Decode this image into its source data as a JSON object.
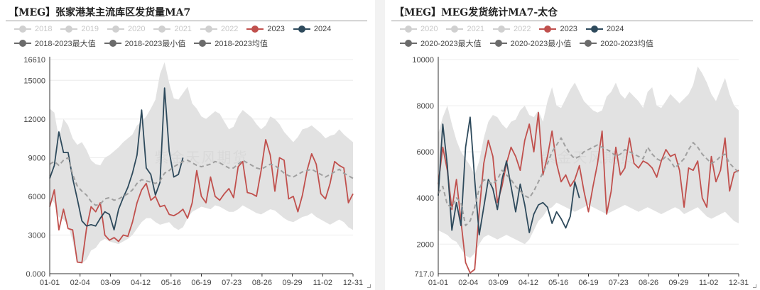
{
  "chart_data": [
    {
      "type": "line",
      "title": "【MEG】张家港某主流库区发货量MA7",
      "x_ticks": [
        "01-01",
        "02-04",
        "03-09",
        "04-12",
        "05-16",
        "06-19",
        "07-23",
        "08-26",
        "09-29",
        "11-02",
        "12-31"
      ],
      "y_ticks": [
        "0.000",
        "3000",
        "6000",
        "9000",
        "12000",
        "15000",
        "16610"
      ],
      "ylim": [
        0,
        16610
      ],
      "grid": true,
      "legend_placement": "top",
      "watermark": "紫金天风期货",
      "legend": [
        {
          "name": "2018",
          "style": "dim"
        },
        {
          "name": "2019",
          "style": "dim"
        },
        {
          "name": "2020",
          "style": "dim"
        },
        {
          "name": "2021",
          "style": "dim"
        },
        {
          "name": "2022",
          "style": "dim"
        },
        {
          "name": "2023",
          "style": "red"
        },
        {
          "name": "2024",
          "style": "navy"
        },
        {
          "name": "2018-2023最大值",
          "style": "gray"
        },
        {
          "name": "2018-2023最小值",
          "style": "gray"
        },
        {
          "name": "2018-2023均值",
          "style": "gray"
        }
      ],
      "series": [
        {
          "name": "2023",
          "color": "#c0504d",
          "values": [
            5200,
            6500,
            3400,
            5000,
            3500,
            3400,
            900,
            850,
            3500,
            5200,
            4800,
            5500,
            3000,
            2600,
            2800,
            2500,
            3000,
            2900,
            4000,
            5500,
            6500,
            7000,
            5700,
            6000,
            5200,
            5300,
            4600,
            4500,
            4700,
            5000,
            4300,
            5500,
            8000,
            6000,
            5500,
            7500,
            6000,
            5700,
            6200,
            6600,
            5900,
            8300,
            8700,
            6300,
            6200,
            6000,
            8000,
            10400,
            9200,
            6400,
            9000,
            8800,
            5800,
            6000,
            4800,
            6100,
            8000,
            9300,
            8500,
            6200,
            5800,
            7000,
            8700,
            8400,
            8200,
            5500,
            6200
          ]
        },
        {
          "name": "2024",
          "color": "#2e4a5c",
          "values": [
            7400,
            8400,
            11000,
            9400,
            9400,
            7400,
            5800,
            4100,
            3700,
            3800,
            3700,
            4300,
            4800,
            4600,
            3400,
            5000,
            5900,
            6700,
            7800,
            9200,
            12700,
            8200,
            7700,
            6100,
            7100,
            14400,
            9500,
            7500,
            7700,
            9000
          ]
        },
        {
          "name": "2018-2023均值",
          "color": "#a0a0a0",
          "dashed": true,
          "values": [
            8500,
            8700,
            8400,
            8800,
            9000,
            7700,
            6800,
            6400,
            6100,
            5600,
            5300,
            5400,
            5800,
            5900,
            5700,
            5800,
            6000,
            6200,
            6500,
            7000,
            7300,
            7200,
            7100,
            7000,
            7200,
            7800,
            8000,
            8300,
            8500,
            8700,
            8800,
            8600,
            8400,
            8300,
            8400,
            8500,
            8700,
            8600,
            8400,
            8200,
            8200,
            8500,
            8800,
            8600,
            8400,
            8200,
            8100,
            8300,
            8500,
            8400,
            8100,
            7800,
            7600,
            7500,
            7700,
            7900,
            8000,
            8100,
            7900,
            7700,
            7500,
            7700,
            7900,
            8100,
            7800,
            7600,
            7400
          ]
        },
        {
          "name": "2018-2023最大值",
          "color": "#e3e3e3",
          "values": [
            12800,
            12500,
            10500,
            12000,
            11500,
            10500,
            10000,
            10200,
            9600,
            8800,
            8500,
            8400,
            9000,
            9200,
            9500,
            9800,
            10200,
            10500,
            10800,
            11500,
            11800,
            12200,
            12800,
            13500,
            15500,
            16400,
            14800,
            13600,
            13500,
            14000,
            14500,
            13200,
            12800,
            12200,
            12000,
            12300,
            12600,
            12400,
            11800,
            11200,
            11400,
            12200,
            12700,
            12400,
            12100,
            11600,
            11200,
            11500,
            12200,
            12000,
            11600,
            11000,
            10600,
            10200,
            10600,
            11200,
            11300,
            11500,
            11200,
            10900,
            10500,
            10700,
            10800,
            11200,
            10800,
            10500,
            10200
          ]
        },
        {
          "name": "2018-2023最小值",
          "color": "#e3e3e3",
          "values": [
            5800,
            5500,
            4400,
            4200,
            3800,
            2500,
            1000,
            800,
            1100,
            1800,
            2000,
            2500,
            2700,
            2500,
            2400,
            2300,
            2500,
            2700,
            3000,
            3500,
            4000,
            4300,
            4300,
            4000,
            3800,
            3900,
            4000,
            3600,
            3400,
            3600,
            4300,
            4800,
            5000,
            5200,
            5100,
            5000,
            5300,
            5200,
            5000,
            4800,
            4800,
            5000,
            5300,
            5100,
            4900,
            4700,
            4600,
            4800,
            5000,
            4900,
            4600,
            4300,
            4100,
            4000,
            4200,
            4400,
            4500,
            4700,
            4400,
            4200,
            4000,
            3800,
            4000,
            4200,
            4000,
            3600,
            3400
          ]
        }
      ]
    },
    {
      "type": "line",
      "title": "【MEG】MEG发货统计MA7-太仓",
      "x_ticks": [
        "01-01",
        "02-04",
        "03-09",
        "04-12",
        "05-16",
        "06-19",
        "07-23",
        "08-26",
        "09-29",
        "11-02",
        "12-31"
      ],
      "y_ticks": [
        "717.0",
        "2000",
        "4000",
        "6000",
        "8000",
        "10000"
      ],
      "ylim": [
        717,
        10000
      ],
      "grid": true,
      "legend_placement": "top",
      "watermark": "紫金天风期货",
      "legend": [
        {
          "name": "2020",
          "style": "dim"
        },
        {
          "name": "2021",
          "style": "dim"
        },
        {
          "name": "2022",
          "style": "dim"
        },
        {
          "name": "2023",
          "style": "red"
        },
        {
          "name": "2024",
          "style": "navy"
        },
        {
          "name": "2020-2023最大值",
          "style": "gray"
        },
        {
          "name": "2020-2023最小值",
          "style": "gray"
        },
        {
          "name": "2020-2023均值",
          "style": "gray"
        }
      ],
      "series": [
        {
          "name": "2023",
          "color": "#c0504d",
          "values": [
            4600,
            6200,
            5200,
            3500,
            4800,
            3000,
            1200,
            750,
            900,
            3400,
            5500,
            6500,
            5800,
            3800,
            4500,
            5500,
            6200,
            5800,
            5200,
            6500,
            7200,
            6000,
            7700,
            5000,
            5800,
            6900,
            5500,
            4700,
            5000,
            4500,
            4800,
            5400,
            4300,
            3400,
            4500,
            5500,
            6900,
            3300,
            4300,
            6200,
            5000,
            5300,
            6600,
            5500,
            5300,
            5600,
            5500,
            5300,
            4900,
            5600,
            6100,
            5800,
            5900,
            5200,
            3600,
            5300,
            5200,
            5600,
            4000,
            3600,
            5800,
            4700,
            5200,
            6600,
            4300,
            5100,
            5200
          ]
        },
        {
          "name": "2024",
          "color": "#2e4a5c",
          "values": [
            4100,
            7200,
            5400,
            2600,
            3800,
            2800,
            6200,
            7500,
            4800,
            2400,
            3600,
            4800,
            4400,
            3500,
            4800,
            5600,
            4500,
            3400,
            4600,
            3700,
            2500,
            3300,
            3700,
            3800,
            3600,
            2900,
            3400,
            3100,
            2700,
            3200,
            4700,
            4000
          ]
        },
        {
          "name": "2020-2023均值",
          "color": "#a0a0a0",
          "dashed": true,
          "values": [
            4200,
            4500,
            3700,
            3600,
            4000,
            3800,
            2800,
            3000,
            3600,
            4400,
            4800,
            4700,
            4600,
            4800,
            5200,
            5000,
            4800,
            4500,
            4300,
            4100,
            4000,
            4300,
            4700,
            5100,
            5500,
            6000,
            6300,
            6600,
            6200,
            5900,
            5700,
            5800,
            6000,
            6100,
            6200,
            6300,
            6200,
            6100,
            6000,
            5800,
            5900,
            6100,
            6000,
            5900,
            5800,
            5700,
            6200,
            5900,
            5700,
            5600,
            5800,
            5600,
            5300,
            5500,
            5700,
            6100,
            6400,
            6200,
            5900,
            5700,
            5500,
            5600,
            5800,
            5900,
            5500,
            5300,
            5100
          ]
        },
        {
          "name": "2020-2023最大值",
          "color": "#e3e3e3",
          "values": [
            6800,
            7500,
            8000,
            7200,
            6500,
            6000,
            5700,
            5400,
            5000,
            5600,
            6600,
            7300,
            7600,
            7500,
            7200,
            7000,
            7300,
            7400,
            7800,
            8000,
            7600,
            7500,
            7800,
            7300,
            8200,
            8800,
            8000,
            7900,
            8300,
            8700,
            9000,
            8600,
            8200,
            8000,
            7800,
            7700,
            7800,
            8400,
            8600,
            9000,
            8500,
            8300,
            8600,
            8400,
            8200,
            7900,
            8600,
            8800,
            8000,
            7900,
            8200,
            8500,
            8300,
            8100,
            8300,
            8500,
            8900,
            9700,
            9400,
            9000,
            8500,
            8200,
            8700,
            9200,
            8500,
            8000,
            7800
          ]
        },
        {
          "name": "2020-2023最小值",
          "color": "#e3e3e3",
          "values": [
            2600,
            2500,
            2400,
            2200,
            2100,
            1800,
            1500,
            1400,
            1600,
            2000,
            2300,
            2400,
            2300,
            2200,
            2300,
            2400,
            2300,
            2200,
            2100,
            2000,
            2200,
            2600,
            3000,
            3200,
            3500,
            3600,
            3800,
            3700,
            3600,
            3500,
            3400,
            3500,
            3600,
            3700,
            3600,
            3500,
            3400,
            3300,
            3400,
            3500,
            3600,
            3700,
            3600,
            3500,
            3400,
            3500,
            3600,
            3500,
            3400,
            3300,
            3400,
            3500,
            3600,
            3500,
            3300,
            3400,
            3500,
            3600,
            3400,
            3200,
            3100,
            3200,
            3300,
            3400,
            3200,
            3000,
            2900
          ]
        }
      ]
    }
  ]
}
